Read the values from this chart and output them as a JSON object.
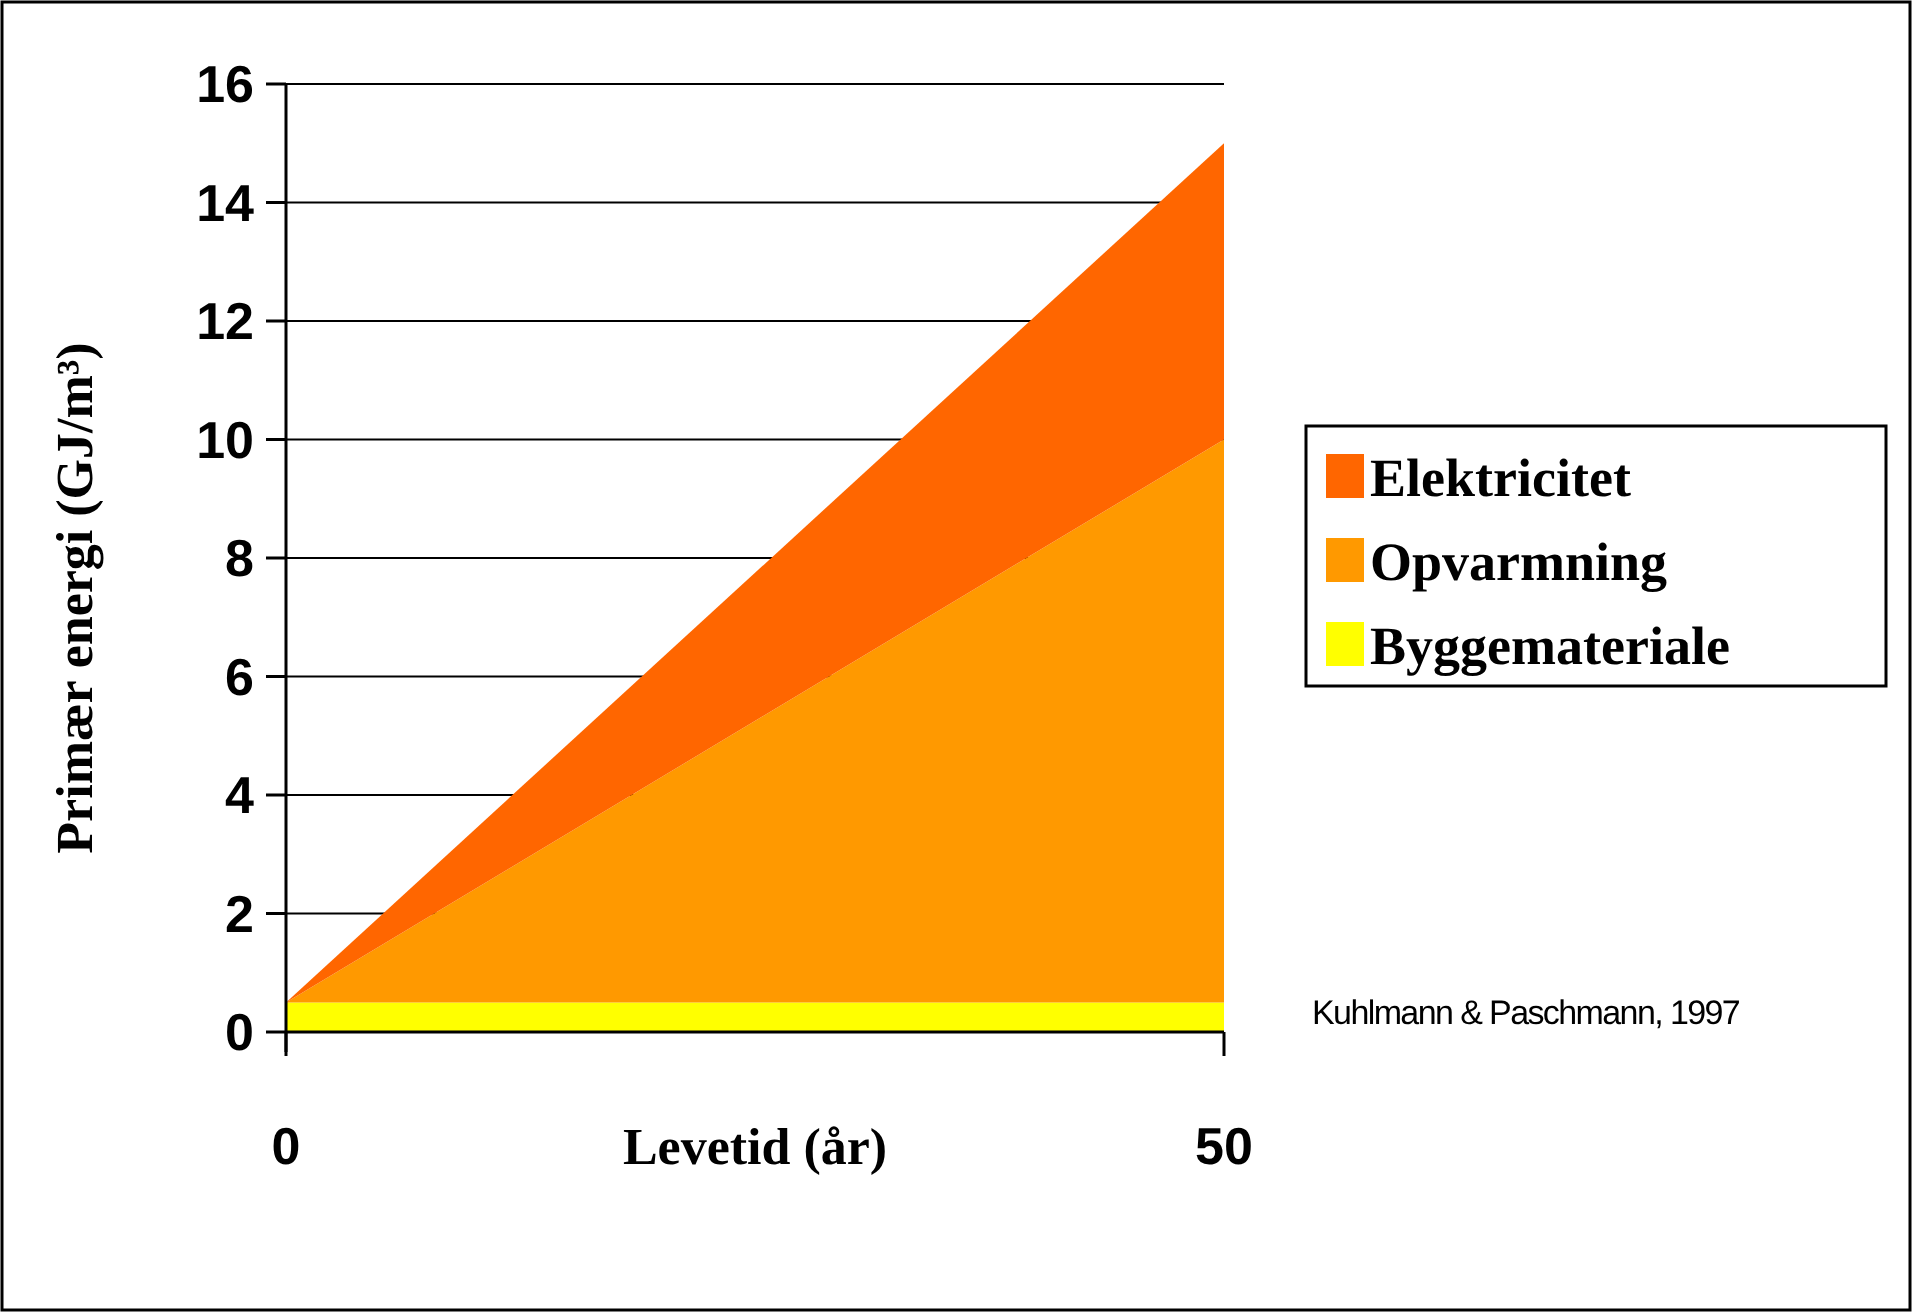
{
  "chart_data": {
    "type": "area",
    "stacked": true,
    "x": [
      0,
      50
    ],
    "xlabel": "Levetid (år)",
    "ylabel": "Primær energi (GJ/m³)",
    "xlim": [
      0,
      50
    ],
    "xticks": [
      0,
      50
    ],
    "ylim": [
      0,
      16
    ],
    "yticks": [
      0,
      2,
      4,
      6,
      8,
      10,
      12,
      14,
      16
    ],
    "grid": "y",
    "legend": "right",
    "series": [
      {
        "name": "Byggemateriale",
        "color": "#ffff00",
        "values": [
          0.5,
          0.5
        ]
      },
      {
        "name": "Opvarmning",
        "color": "#ff9900",
        "values": [
          0,
          9.5
        ]
      },
      {
        "name": "Elektricitet",
        "color": "#ff6600",
        "values": [
          0,
          5
        ]
      }
    ],
    "annotations": [
      "Kuhlmann & Paschmann, 1997"
    ]
  }
}
